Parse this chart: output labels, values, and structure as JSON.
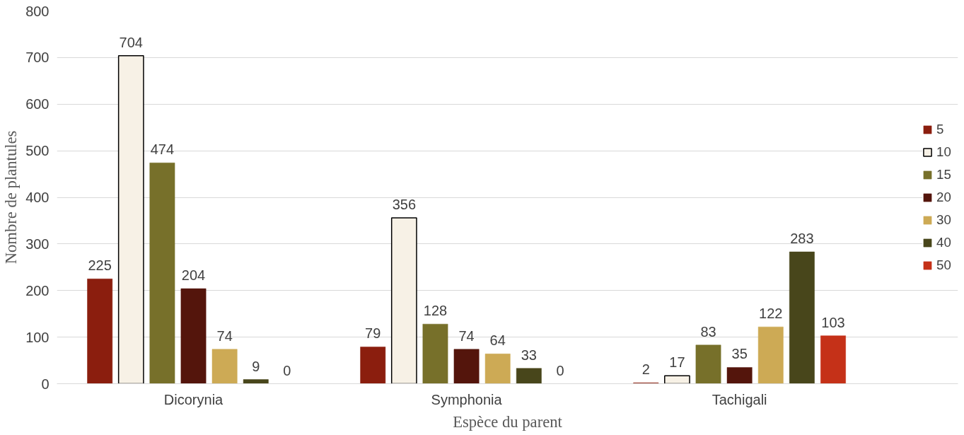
{
  "chart_data": {
    "type": "bar",
    "xlabel": "Espèce du parent",
    "ylabel": "Nombre de plantules",
    "categories": [
      "Dicorynia",
      "Symphonia",
      "Tachigali"
    ],
    "series": [
      {
        "name": "5",
        "color": "#8b1e0e",
        "values": [
          225,
          79,
          2
        ]
      },
      {
        "name": "10",
        "color": "#f7f1e6",
        "values": [
          704,
          356,
          17
        ]
      },
      {
        "name": "15",
        "color": "#77702a",
        "values": [
          474,
          128,
          83
        ]
      },
      {
        "name": "20",
        "color": "#54150c",
        "values": [
          204,
          74,
          35
        ]
      },
      {
        "name": "30",
        "color": "#cdaa55",
        "values": [
          74,
          64,
          122
        ]
      },
      {
        "name": "40",
        "color": "#48461b",
        "values": [
          9,
          33,
          283
        ]
      },
      {
        "name": "50",
        "color": "#c53118",
        "values": [
          0,
          0,
          103
        ]
      }
    ],
    "ylim": [
      0,
      800
    ],
    "yticks": [
      0,
      100,
      200,
      300,
      400,
      500,
      600,
      700,
      800
    ],
    "grid": "y",
    "legend": "right",
    "data_labels": true
  }
}
